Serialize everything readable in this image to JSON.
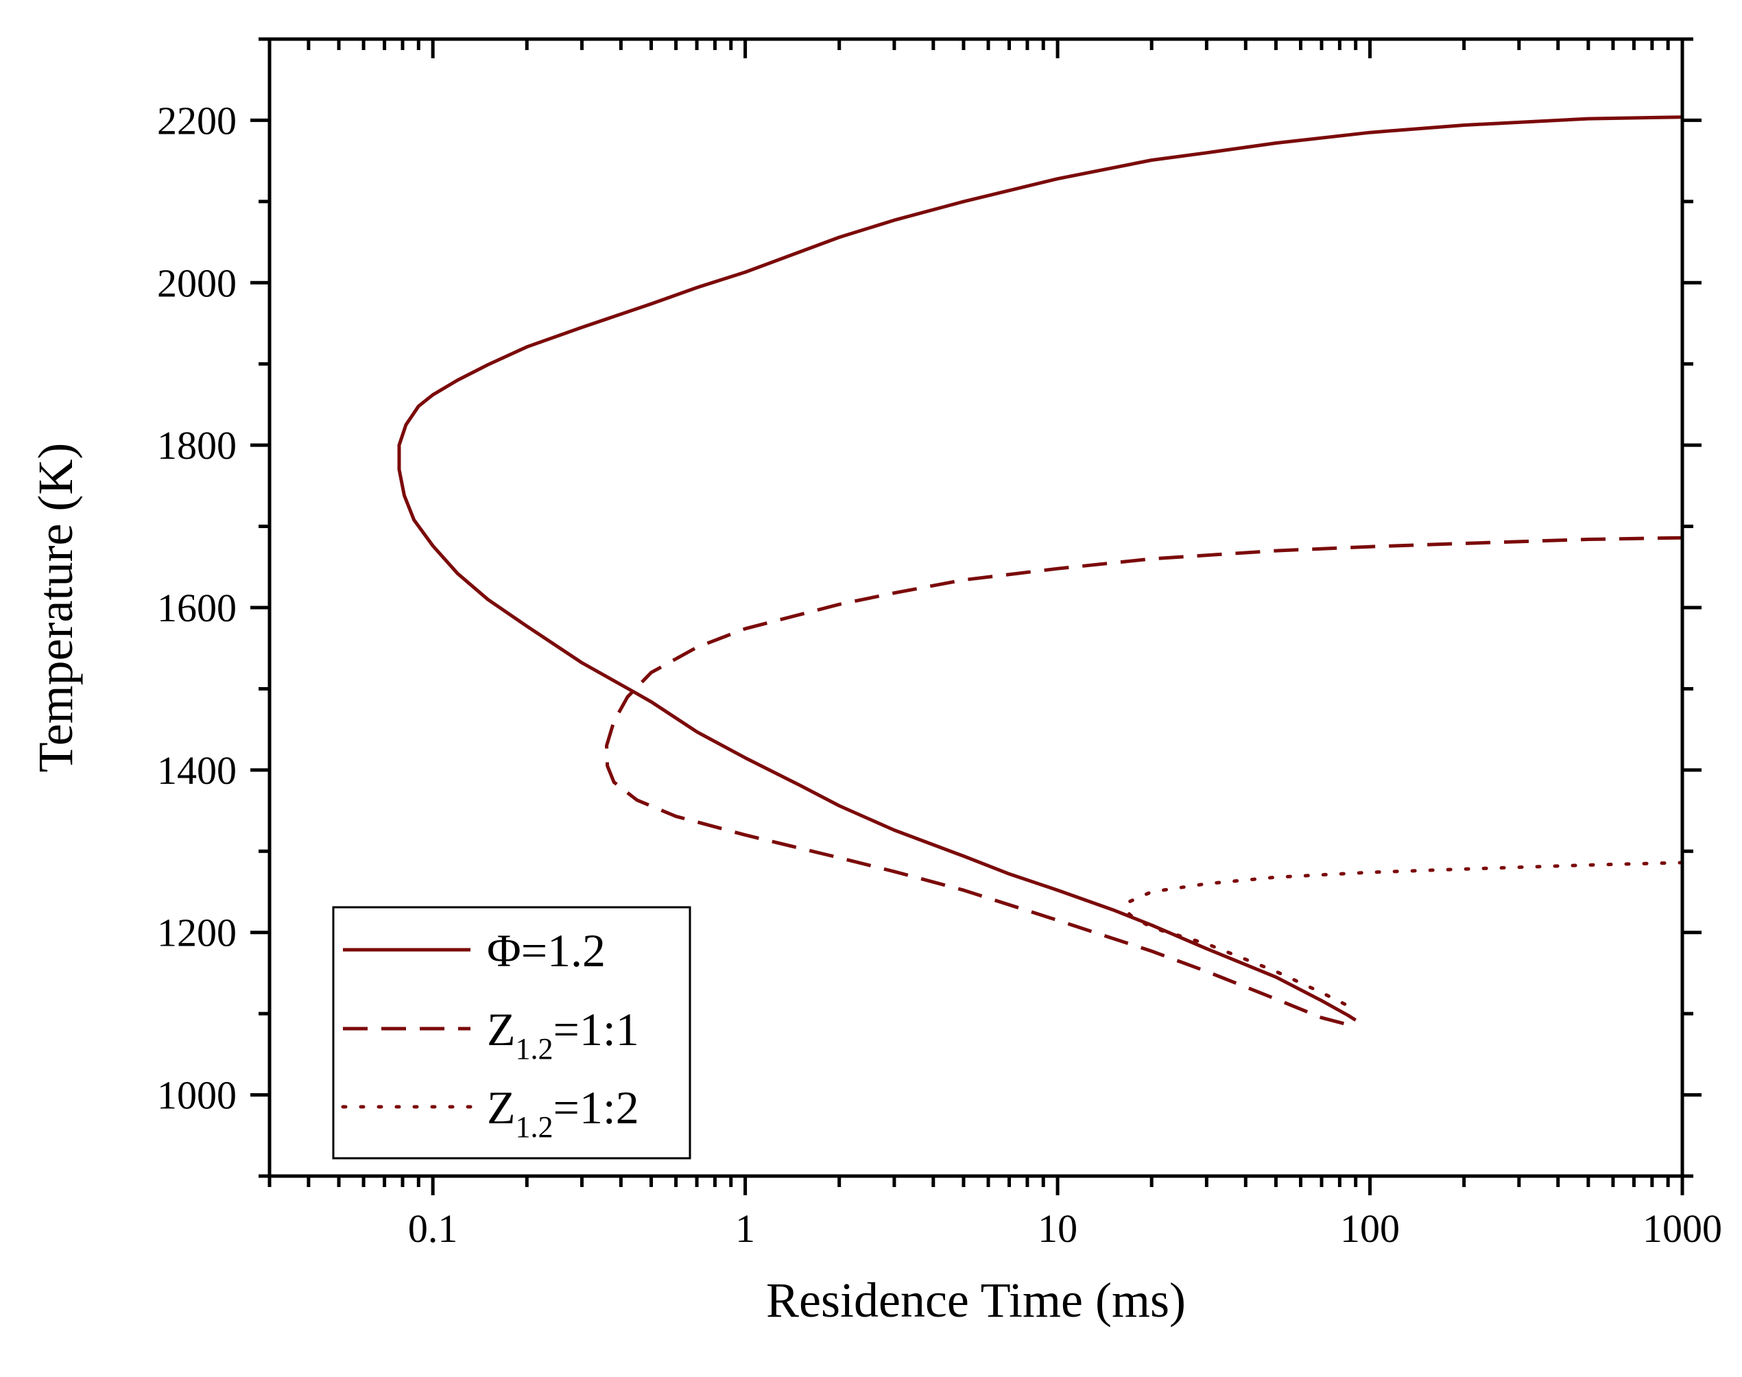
{
  "chart_data": {
    "type": "line",
    "title": "",
    "xlabel": "Residence Time (ms)",
    "ylabel": "Temperature (K)",
    "xscale": "log",
    "xlim": [
      0.03,
      1000
    ],
    "ylim": [
      900,
      2300
    ],
    "x_ticks": [
      0.1,
      1,
      10,
      100,
      1000
    ],
    "x_tick_labels": [
      "0.1",
      "1",
      "10",
      "100",
      "1000"
    ],
    "y_ticks": [
      1000,
      1200,
      1400,
      1600,
      1800,
      2000,
      2200
    ],
    "y_tick_labels": [
      "1000",
      "1200",
      "1400",
      "1600",
      "1800",
      "2000",
      "2200"
    ],
    "grid": false,
    "legend_position": "bottom-left",
    "color": "#7b0a0a",
    "series": [
      {
        "name": "Φ=1.2",
        "legend": {
          "base": "Φ=1.2",
          "sub": "",
          "rest": ""
        },
        "style": "solid",
        "points": [
          [
            1000,
            2204
          ],
          [
            500,
            2202
          ],
          [
            200,
            2194
          ],
          [
            100,
            2185
          ],
          [
            50,
            2172
          ],
          [
            30,
            2160
          ],
          [
            20,
            2151
          ],
          [
            10,
            2128
          ],
          [
            5,
            2100
          ],
          [
            3,
            2077
          ],
          [
            2,
            2056
          ],
          [
            1,
            2013
          ],
          [
            0.7,
            1994
          ],
          [
            0.5,
            1974
          ],
          [
            0.3,
            1945
          ],
          [
            0.2,
            1921
          ],
          [
            0.15,
            1899
          ],
          [
            0.12,
            1880
          ],
          [
            0.1,
            1862
          ],
          [
            0.09,
            1848
          ],
          [
            0.082,
            1825
          ],
          [
            0.078,
            1800
          ],
          [
            0.078,
            1770
          ],
          [
            0.081,
            1738
          ],
          [
            0.087,
            1708
          ],
          [
            0.1,
            1676
          ],
          [
            0.12,
            1642
          ],
          [
            0.15,
            1610
          ],
          [
            0.2,
            1577
          ],
          [
            0.3,
            1532
          ],
          [
            0.45,
            1494
          ],
          [
            0.5,
            1484
          ],
          [
            0.7,
            1447
          ],
          [
            1,
            1415
          ],
          [
            1.5,
            1381
          ],
          [
            2,
            1356
          ],
          [
            3,
            1326
          ],
          [
            5,
            1294
          ],
          [
            7,
            1272
          ],
          [
            10,
            1252
          ],
          [
            15,
            1228
          ],
          [
            20,
            1209
          ],
          [
            30,
            1180
          ],
          [
            50,
            1145
          ],
          [
            70,
            1116
          ],
          [
            85,
            1098
          ],
          [
            90,
            1092
          ]
        ]
      },
      {
        "name": "Z1.2=1:1",
        "legend": {
          "base": "Z",
          "sub": "1.2",
          "rest": "=1:1"
        },
        "style": "dashed",
        "points": [
          [
            1000,
            1686
          ],
          [
            500,
            1684
          ],
          [
            200,
            1679
          ],
          [
            100,
            1675
          ],
          [
            50,
            1670
          ],
          [
            20,
            1660
          ],
          [
            10,
            1648
          ],
          [
            5,
            1634
          ],
          [
            3,
            1618
          ],
          [
            2,
            1604
          ],
          [
            1,
            1574
          ],
          [
            0.7,
            1551
          ],
          [
            0.5,
            1520
          ],
          [
            0.42,
            1490
          ],
          [
            0.38,
            1460
          ],
          [
            0.36,
            1430
          ],
          [
            0.362,
            1405
          ],
          [
            0.38,
            1385
          ],
          [
            0.45,
            1363
          ],
          [
            0.6,
            1343
          ],
          [
            1,
            1320
          ],
          [
            2,
            1292
          ],
          [
            3,
            1275
          ],
          [
            5,
            1252
          ],
          [
            10,
            1215
          ],
          [
            20,
            1177
          ],
          [
            30,
            1152
          ],
          [
            50,
            1118
          ],
          [
            70,
            1095
          ],
          [
            88,
            1085
          ]
        ]
      },
      {
        "name": "Z1.2=1:2",
        "legend": {
          "base": "Z",
          "sub": "1.2",
          "rest": "=1:2"
        },
        "style": "dotted",
        "points": [
          [
            1000,
            1286
          ],
          [
            500,
            1283
          ],
          [
            200,
            1278
          ],
          [
            100,
            1274
          ],
          [
            50,
            1268
          ],
          [
            30,
            1260
          ],
          [
            20,
            1250
          ],
          [
            17,
            1238
          ],
          [
            16.5,
            1232
          ],
          [
            17,
            1222
          ],
          [
            20,
            1206
          ],
          [
            30,
            1186
          ],
          [
            50,
            1152
          ],
          [
            70,
            1126
          ],
          [
            90,
            1105
          ]
        ]
      }
    ]
  }
}
